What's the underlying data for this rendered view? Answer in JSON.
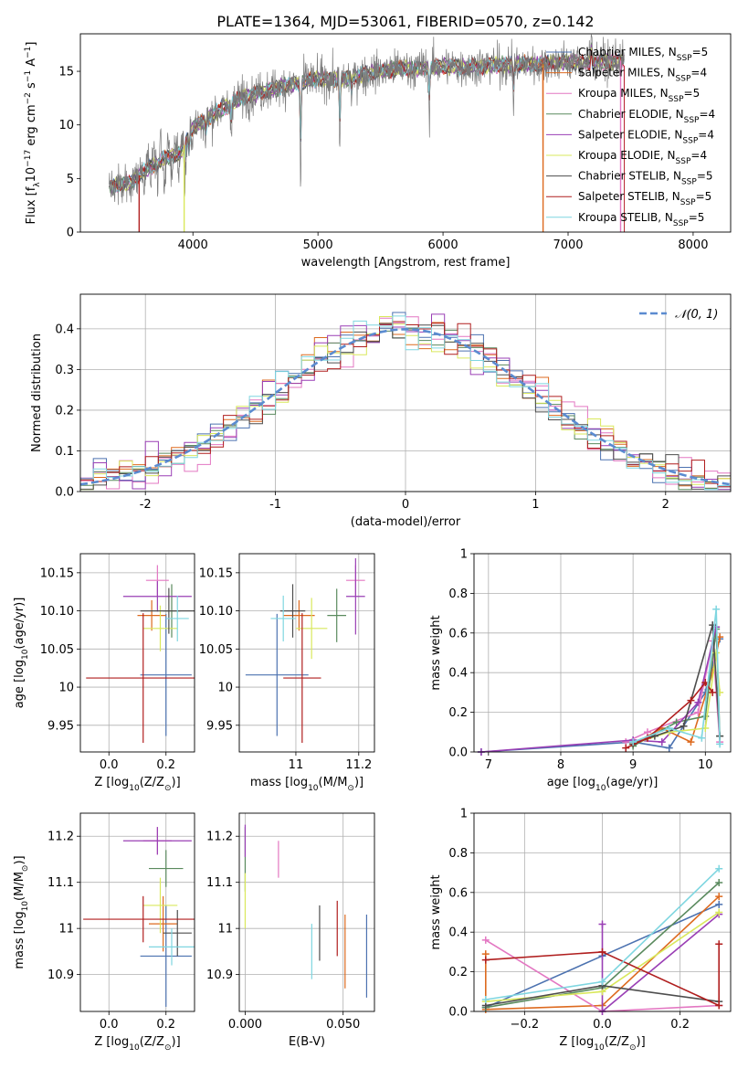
{
  "figure": {
    "title": "PLATE=1364, MJD=53061, FIBERID=0570, z=0.142"
  },
  "colors": {
    "palette": [
      "#4c72b0",
      "#dd6a1f",
      "#e377c2",
      "#5a8a5e",
      "#9a3fb5",
      "#d9e85c",
      "#4d4d4d",
      "#b01e1e",
      "#7fd6e0"
    ],
    "gaussian": "#5b8bd0",
    "spectrum_grey": "#7a7a7a"
  },
  "chart_data": [
    {
      "id": "spectrum",
      "type": "line",
      "xlabel": "wavelength [Angstrom, rest frame]",
      "ylabel": "Flux [f_λ 10^-17 erg cm^-2 s^-1 A^-1]",
      "xlim": [
        3100,
        8300
      ],
      "ylim": [
        0,
        18.5
      ],
      "xticks": [
        4000,
        5000,
        6000,
        7000,
        8000
      ],
      "yticks": [
        0,
        5,
        10,
        15
      ],
      "grid": false,
      "legend_position": "top-right",
      "data_wavelength_range": [
        3330,
        7450
      ],
      "continuum_x": [
        3330,
        3500,
        3600,
        3700,
        3800,
        3900,
        4000,
        4200,
        4400,
        4600,
        4800,
        5000,
        5200,
        5400,
        5600,
        5800,
        6000,
        6200,
        6400,
        6600,
        6800,
        7000,
        7200,
        7450
      ],
      "continuum_y": [
        4.2,
        4.6,
        5.6,
        6.3,
        7.0,
        7.4,
        9.8,
        11.2,
        12.6,
        13.3,
        13.8,
        14.3,
        14.3,
        14.8,
        15.2,
        15.3,
        15.5,
        15.4,
        15.6,
        15.6,
        15.7,
        15.9,
        15.8,
        16.0
      ],
      "series": [
        {
          "name": "Chabrier MILES, N_SSP=5"
        },
        {
          "name": "Salpeter MILES, N_SSP=4"
        },
        {
          "name": "Kroupa MILES, N_SSP=5"
        },
        {
          "name": "Chabrier ELODIE, N_SSP=4"
        },
        {
          "name": "Salpeter ELODIE, N_SSP=4"
        },
        {
          "name": "Kroupa ELODIE, N_SSP=4"
        },
        {
          "name": "Chabrier STELIB, N_SSP=5"
        },
        {
          "name": "Salpeter STELIB, N_SSP=5"
        },
        {
          "name": "Kroupa STELIB, N_SSP=5"
        }
      ]
    },
    {
      "id": "residuals",
      "type": "line",
      "xlabel": "(data-model)/error",
      "ylabel": "Normed distribution",
      "xlim": [
        -2.5,
        2.5
      ],
      "ylim": [
        0,
        0.485
      ],
      "xticks": [
        -2,
        -1,
        0,
        1,
        2
      ],
      "yticks": [
        0.0,
        0.1,
        0.2,
        0.3,
        0.4
      ],
      "grid": true,
      "legend_position": "top-right",
      "gaussian_label": "N(0,1)",
      "bin_width": 0.1
    },
    {
      "id": "age_vs_Z",
      "type": "scatter",
      "xlabel": "Z [log10(Z/Z⊙)]",
      "ylabel": "age  [log10(age/yr)]",
      "xlim": [
        -0.1,
        0.3
      ],
      "ylim": [
        9.915,
        10.175
      ],
      "xticks": [
        0.0,
        0.2
      ],
      "yticks": [
        9.95,
        10.0,
        10.05,
        10.1,
        10.15
      ],
      "grid": true,
      "points": [
        {
          "x": 0.2,
          "y": 10.016,
          "xerr": 0.09,
          "yerr": 0.08
        },
        {
          "x": 0.15,
          "y": 10.094,
          "xerr": 0.05,
          "yerr": 0.02
        },
        {
          "x": 0.17,
          "y": 10.14,
          "xerr": 0.04,
          "yerr": 0.02
        },
        {
          "x": 0.22,
          "y": 10.1,
          "xerr": 0.03,
          "yerr": 0.035
        },
        {
          "x": 0.17,
          "y": 10.119,
          "xerr": 0.12,
          "yerr": 0.02
        },
        {
          "x": 0.18,
          "y": 10.077,
          "xerr": 0.06,
          "yerr": 0.03
        },
        {
          "x": 0.21,
          "y": 10.1,
          "xerr": 0.1,
          "yerr": 0.03
        },
        {
          "x": 0.12,
          "y": 10.012,
          "xerr": 0.2,
          "yerr": 0.085
        },
        {
          "x": 0.24,
          "y": 10.09,
          "xerr": 0.04,
          "yerr": 0.03
        }
      ]
    },
    {
      "id": "age_vs_mass",
      "type": "scatter",
      "xlabel": "mass [log10(M/M⊙)]",
      "ylabel": "",
      "xlim": [
        10.82,
        11.25
      ],
      "ylim": [
        9.915,
        10.175
      ],
      "xticks": [
        10.8,
        11.0,
        11.2
      ],
      "yticks": [
        9.95,
        10.0,
        10.05,
        10.1,
        10.15
      ],
      "grid": true,
      "points": [
        {
          "x": 10.94,
          "y": 10.016,
          "xerr": 0.1,
          "yerr": 0.08
        },
        {
          "x": 11.01,
          "y": 10.094,
          "xerr": 0.05,
          "yerr": 0.02
        },
        {
          "x": 11.19,
          "y": 10.14,
          "xerr": 0.03,
          "yerr": 0.02
        },
        {
          "x": 11.13,
          "y": 10.094,
          "xerr": 0.03,
          "yerr": 0.035
        },
        {
          "x": 11.19,
          "y": 10.119,
          "xerr": 0.03,
          "yerr": 0.05
        },
        {
          "x": 11.05,
          "y": 10.077,
          "xerr": 0.05,
          "yerr": 0.04
        },
        {
          "x": 10.99,
          "y": 10.1,
          "xerr": 0.04,
          "yerr": 0.035
        },
        {
          "x": 11.02,
          "y": 10.012,
          "xerr": 0.06,
          "yerr": 0.085
        },
        {
          "x": 10.96,
          "y": 10.09,
          "xerr": 0.04,
          "yerr": 0.03
        }
      ]
    },
    {
      "id": "weight_vs_age",
      "type": "line",
      "xlabel": "age  [log10(age/yr)]",
      "ylabel": "mass weight",
      "xlim": [
        6.8,
        10.35
      ],
      "ylim": [
        0,
        1.0
      ],
      "xticks": [
        7,
        8,
        9,
        10
      ],
      "yticks": [
        0.0,
        0.2,
        0.4,
        0.6,
        0.8,
        1.0
      ],
      "grid": true,
      "series": [
        {
          "x": [
            6.9,
            9.0,
            9.5,
            10.0,
            10.2
          ],
          "y": [
            0.0,
            0.05,
            0.02,
            0.3,
            0.57
          ]
        },
        {
          "x": [
            9.0,
            9.4,
            9.8,
            10.1,
            10.2
          ],
          "y": [
            0.04,
            0.12,
            0.05,
            0.4,
            0.58
          ]
        },
        {
          "x": [
            8.9,
            9.2,
            9.9,
            10.1,
            10.2
          ],
          "y": [
            0.05,
            0.1,
            0.2,
            0.56,
            0.05
          ]
        },
        {
          "x": [
            9.0,
            9.6,
            10.0,
            10.15,
            10.2
          ],
          "y": [
            0.03,
            0.15,
            0.18,
            0.62,
            0.08
          ]
        },
        {
          "x": [
            6.9,
            9.0,
            9.4,
            9.9,
            10.15
          ],
          "y": [
            0.0,
            0.06,
            0.05,
            0.25,
            0.63
          ]
        },
        {
          "x": [
            9.0,
            9.5,
            10.0,
            10.15,
            10.2
          ],
          "y": [
            0.04,
            0.1,
            0.12,
            0.5,
            0.3
          ]
        },
        {
          "x": [
            9.0,
            9.3,
            9.7,
            10.1,
            10.2
          ],
          "y": [
            0.04,
            0.08,
            0.13,
            0.64,
            0.08
          ]
        },
        {
          "x": [
            8.9,
            9.2,
            9.8,
            10.0,
            10.1
          ],
          "y": [
            0.02,
            0.07,
            0.26,
            0.35,
            0.3
          ]
        },
        {
          "x": [
            9.0,
            9.5,
            9.95,
            10.15,
            10.2
          ],
          "y": [
            0.05,
            0.12,
            0.07,
            0.72,
            0.04
          ]
        }
      ]
    },
    {
      "id": "mass_vs_Z",
      "type": "scatter",
      "xlabel": "Z [log10(Z/Z⊙)]",
      "ylabel": "mass [log10(M/M⊙)]",
      "xlim": [
        -0.1,
        0.3
      ],
      "ylim": [
        10.82,
        11.25
      ],
      "xticks": [
        0.0,
        0.2
      ],
      "yticks": [
        10.9,
        11.0,
        11.1,
        11.2
      ],
      "grid": true,
      "points": [
        {
          "x": 0.2,
          "y": 10.94,
          "xerr": 0.09,
          "yerr": 0.11
        },
        {
          "x": 0.19,
          "y": 11.01,
          "xerr": 0.05,
          "yerr": 0.06
        },
        {
          "x": 0.17,
          "y": 11.19,
          "xerr": 0.05,
          "yerr": 0.03
        },
        {
          "x": 0.2,
          "y": 11.13,
          "xerr": 0.06,
          "yerr": 0.04
        },
        {
          "x": 0.17,
          "y": 11.19,
          "xerr": 0.12,
          "yerr": 0.03
        },
        {
          "x": 0.18,
          "y": 11.05,
          "xerr": 0.06,
          "yerr": 0.06
        },
        {
          "x": 0.24,
          "y": 10.99,
          "xerr": 0.05,
          "yerr": 0.05
        },
        {
          "x": 0.12,
          "y": 11.02,
          "xerr": 0.21,
          "yerr": 0.05
        },
        {
          "x": 0.22,
          "y": 10.96,
          "xerr": 0.08,
          "yerr": 0.04
        }
      ]
    },
    {
      "id": "mass_vs_ebv",
      "type": "scatter",
      "xlabel": "E(B-V)",
      "ylabel": "",
      "xlim": [
        -0.003,
        0.066
      ],
      "ylim": [
        10.82,
        11.25
      ],
      "xticks": [
        0.0,
        0.05
      ],
      "tick_labels": [
        "0.000",
        "0.050"
      ],
      "yticks": [
        10.9,
        11.0,
        11.1,
        11.2
      ],
      "grid": true,
      "points": [
        {
          "x": 0.062,
          "y": 10.94,
          "yerr": 0.09
        },
        {
          "x": 0.051,
          "y": 10.95,
          "yerr": 0.08
        },
        {
          "x": 0.017,
          "y": 11.15,
          "yerr": 0.04
        },
        {
          "x": 0.0,
          "y": 11.15,
          "yerr": 0.07
        },
        {
          "x": 0.0,
          "y": 11.19,
          "yerr": 0.035
        },
        {
          "x": 0.0,
          "y": 11.06,
          "yerr": 0.06
        },
        {
          "x": 0.038,
          "y": 10.99,
          "yerr": 0.06
        },
        {
          "x": 0.047,
          "y": 11.0,
          "yerr": 0.06
        },
        {
          "x": 0.034,
          "y": 10.95,
          "yerr": 0.06
        }
      ]
    },
    {
      "id": "weight_vs_Z",
      "type": "line",
      "xlabel": "Z [log10(Z/Z⊙)]",
      "ylabel": "mass weight",
      "xlim": [
        -0.33,
        0.33
      ],
      "ylim": [
        0,
        1.0
      ],
      "xticks": [
        -0.2,
        0.0,
        0.2
      ],
      "yticks": [
        0.0,
        0.2,
        0.4,
        0.6,
        0.8,
        1.0
      ],
      "grid": true,
      "series": [
        {
          "x": [
            -0.3,
            0.0,
            0.3
          ],
          "y": [
            0.02,
            0.28,
            0.54
          ]
        },
        {
          "x": [
            -0.3,
            -0.3,
            0.0,
            0.3
          ],
          "y": [
            0.29,
            0.01,
            0.03,
            0.58
          ]
        },
        {
          "x": [
            -0.3,
            0.0,
            0.3
          ],
          "y": [
            0.36,
            0.0,
            0.03
          ]
        },
        {
          "x": [
            -0.3,
            0.0,
            0.3
          ],
          "y": [
            0.02,
            0.12,
            0.65
          ]
        },
        {
          "x": [
            0.0,
            0.0,
            0.3
          ],
          "y": [
            0.44,
            0.0,
            0.49
          ]
        },
        {
          "x": [
            -0.3,
            0.0,
            0.3
          ],
          "y": [
            0.05,
            0.1,
            0.5
          ]
        },
        {
          "x": [
            -0.3,
            0.0,
            0.3
          ],
          "y": [
            0.03,
            0.13,
            0.05
          ]
        },
        {
          "x": [
            -0.3,
            0.0,
            0.3,
            0.3
          ],
          "y": [
            0.26,
            0.3,
            0.03,
            0.34
          ]
        },
        {
          "x": [
            -0.3,
            0.0,
            0.3
          ],
          "y": [
            0.06,
            0.15,
            0.72
          ]
        }
      ]
    }
  ]
}
